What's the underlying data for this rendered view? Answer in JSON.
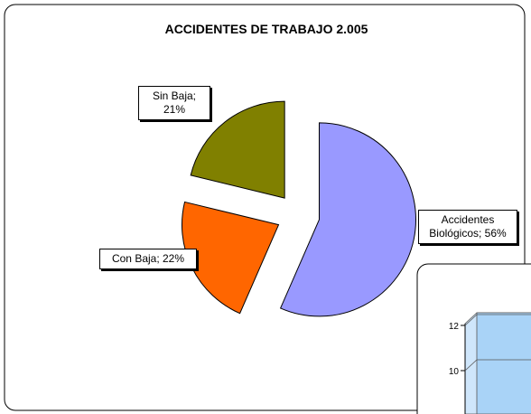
{
  "chart_data": [
    {
      "type": "pie",
      "title": "ACCIDENTES DE TRABAJO 2.005",
      "categories": [
        "Accidentes Biológicos",
        "Con Baja",
        "Sin Baja"
      ],
      "values": [
        56,
        22,
        21
      ],
      "value_labels": [
        "Accidentes Biológicos; 56%",
        "Con Baja; 22%",
        "Sin Baja; 21%"
      ],
      "colors": [
        "#9999FF",
        "#FF6600",
        "#808000"
      ]
    },
    {
      "type": "bar",
      "ylim": [
        0,
        12
      ],
      "yticks": [
        10,
        12
      ]
    }
  ]
}
